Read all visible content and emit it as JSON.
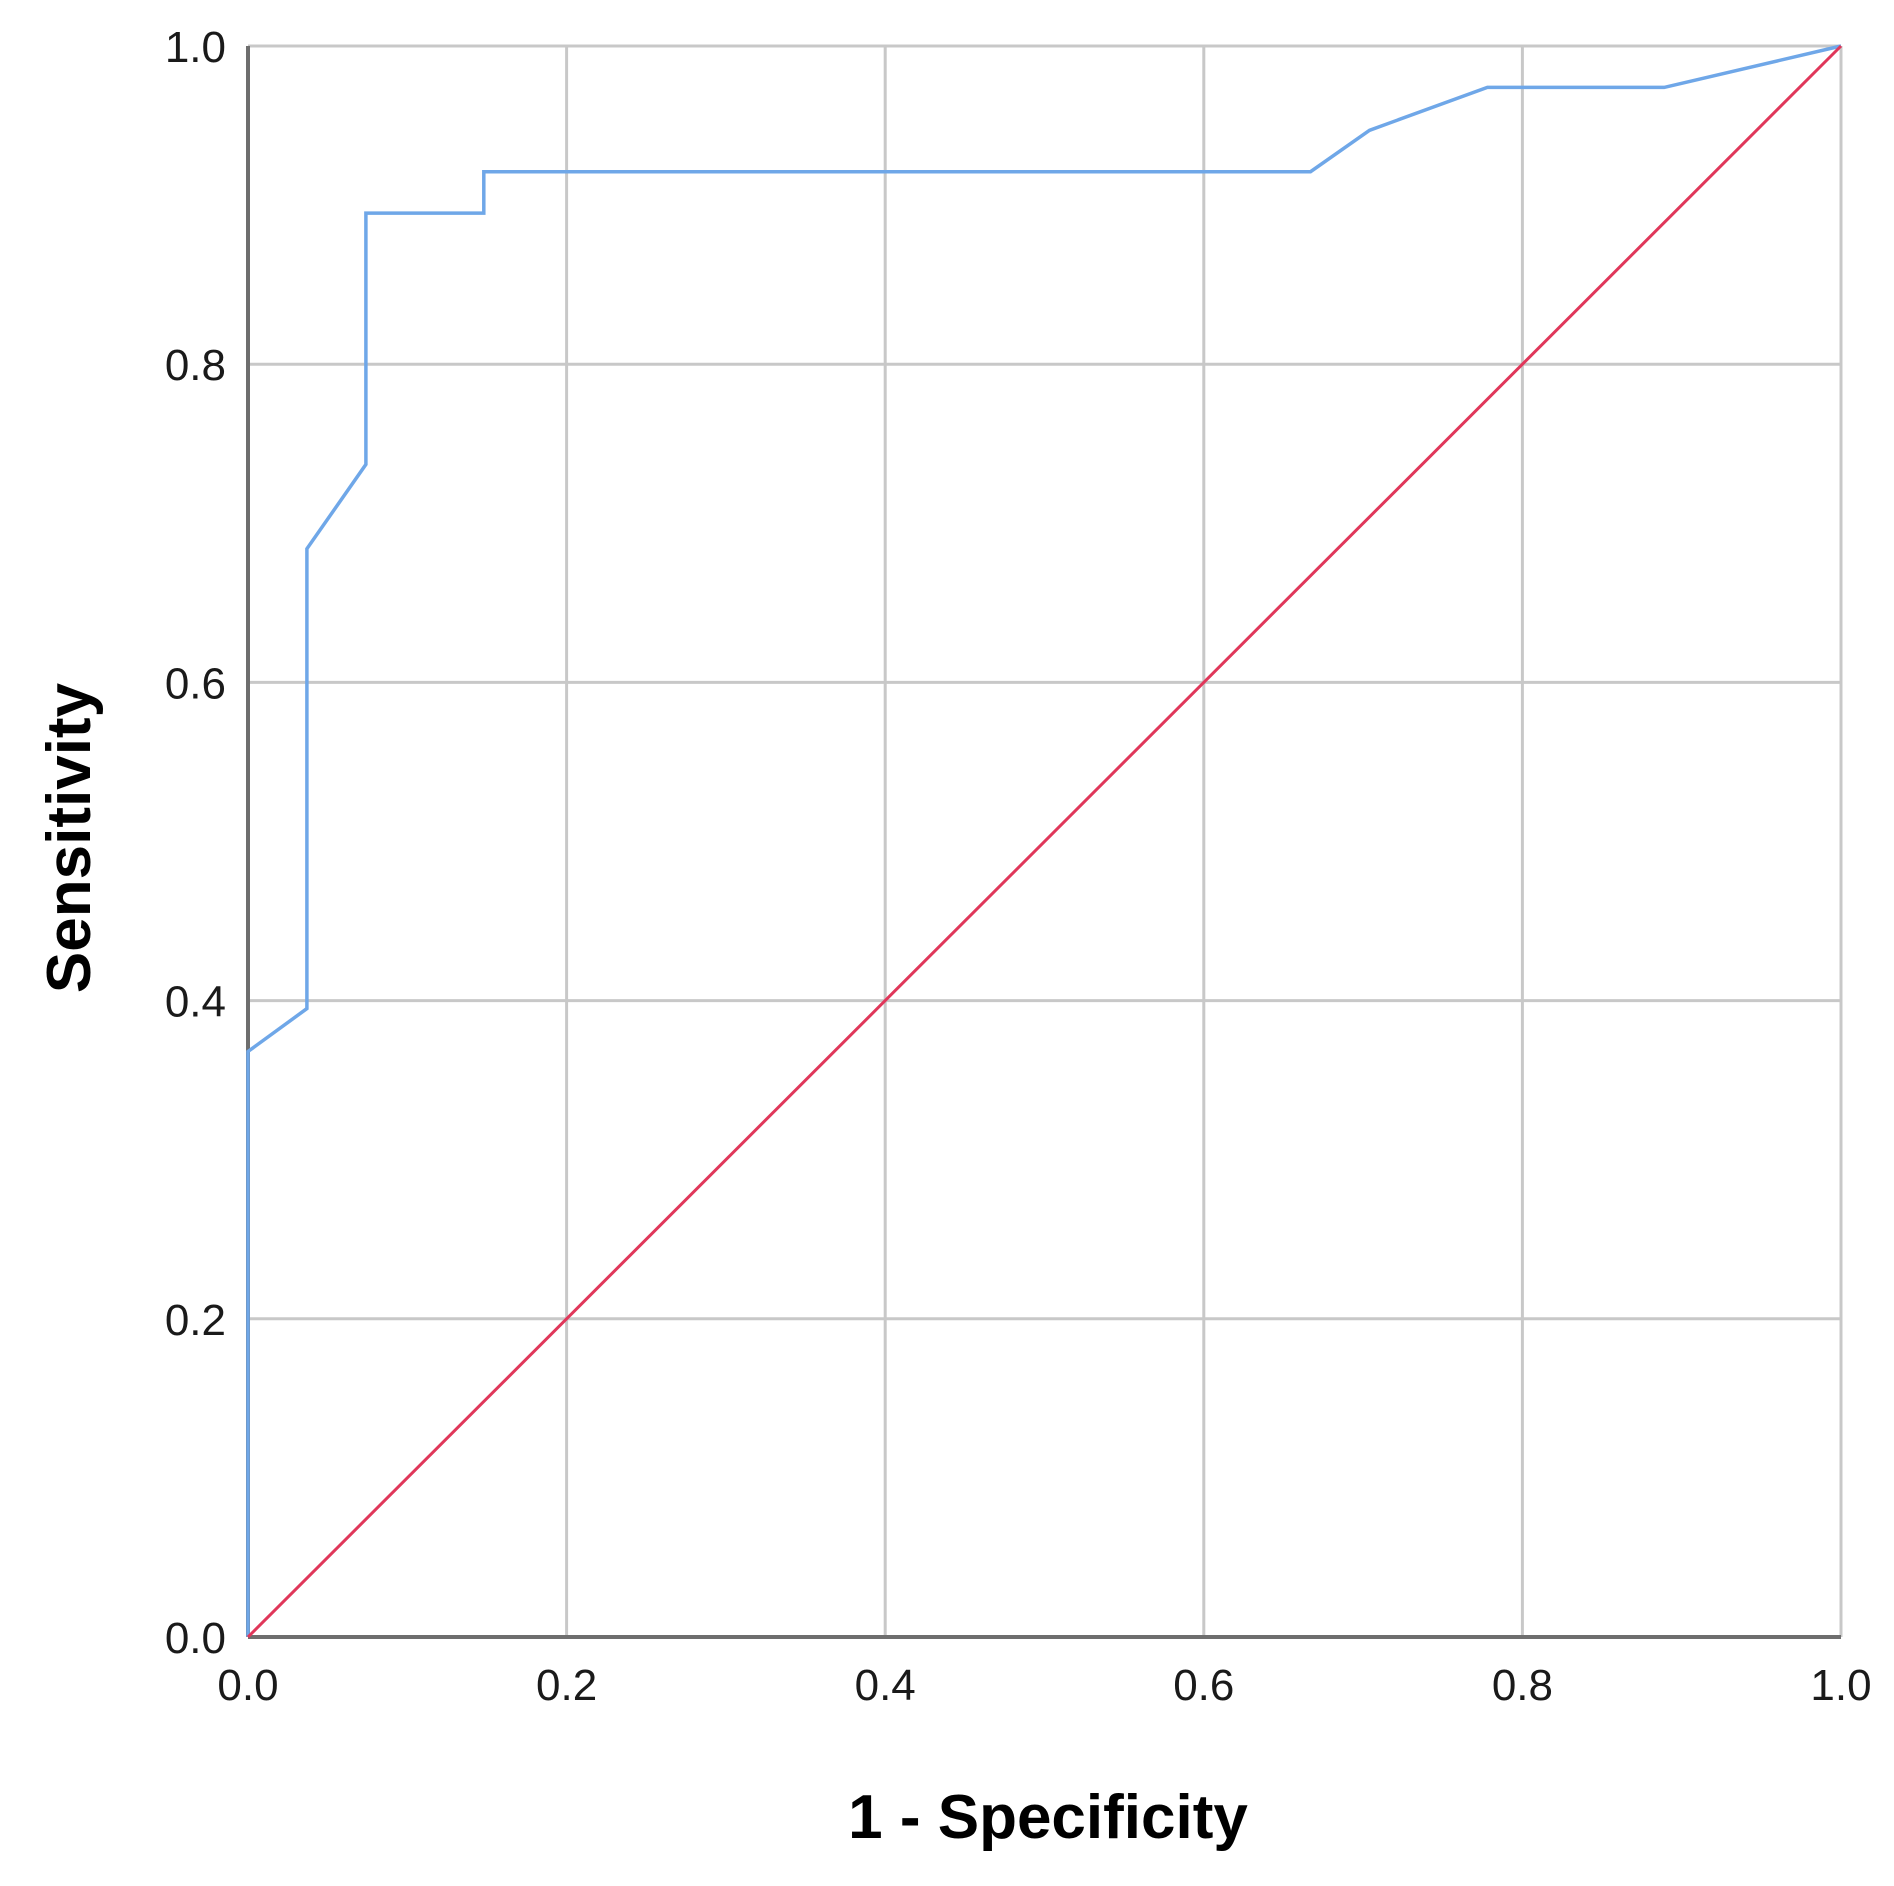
{
  "chart_data": {
    "type": "line",
    "title": "",
    "xlabel": "1 - Specificity",
    "ylabel": "Sensitivity",
    "xlim": [
      0,
      1
    ],
    "ylim": [
      0,
      1
    ],
    "x_ticks": [
      "0.0",
      "0.2",
      "0.4",
      "0.6",
      "0.8",
      "1.0"
    ],
    "y_ticks": [
      "0.0",
      "0.2",
      "0.4",
      "0.6",
      "0.8",
      "1.0"
    ],
    "grid": true,
    "legend": "none",
    "series": [
      {
        "color": "#6fa7e8",
        "x": [
          0.0,
          0.0,
          0.037,
          0.037,
          0.074,
          0.074,
          0.148,
          0.148,
          0.667,
          0.704,
          0.778,
          0.889,
          1.0
        ],
        "y": [
          0.0,
          0.368,
          0.395,
          0.684,
          0.737,
          0.895,
          0.895,
          0.921,
          0.921,
          0.947,
          0.974,
          0.974,
          1.0
        ]
      },
      {
        "color": "#e0375a",
        "x": [
          0,
          1
        ],
        "y": [
          0,
          1
        ]
      }
    ]
  }
}
